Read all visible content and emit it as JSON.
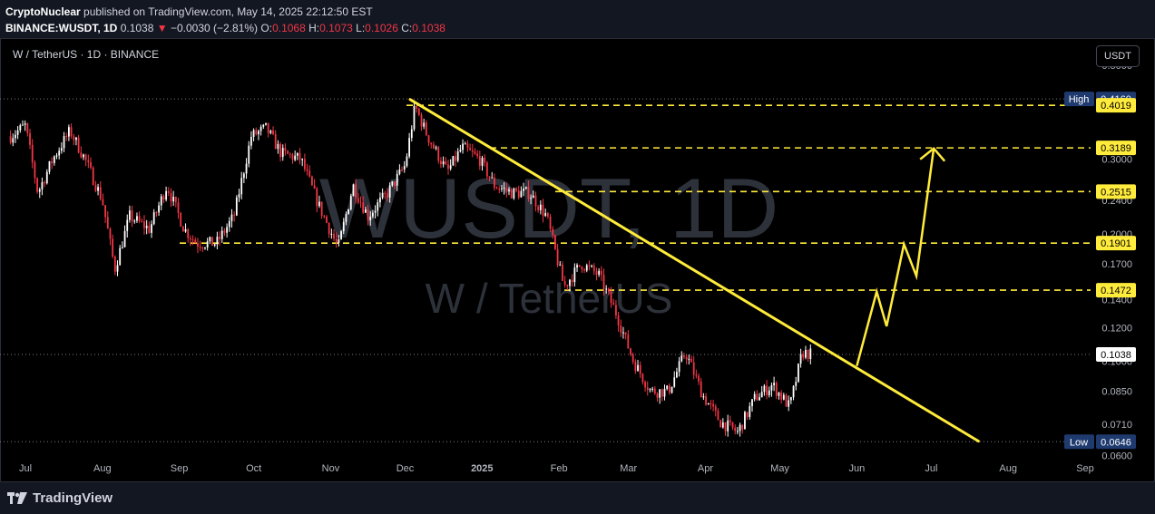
{
  "header": {
    "publisher": "CryptoNuclear",
    "published_text": "published on TradingView.com, May 14, 2025 22:12:50 EST",
    "symbol_line": "BINANCE:WUSDT, 1D",
    "last": "0.1038",
    "change": "−0.0030 (−2.81%)",
    "o_label": "O:",
    "o": "0.1068",
    "h_label": "H:",
    "h": "0.1073",
    "l_label": "L:",
    "l": "0.1026",
    "c_label": "C:",
    "c": "0.1038"
  },
  "chart_title": "W / TetherUS · 1D · BINANCE",
  "currency_button": "USDT",
  "watermark": {
    "line1": "WUSDT, 1D",
    "line2": "W / TetherUS"
  },
  "brand": "TradingView",
  "colors": {
    "up": "#ffffff",
    "down": "#f23645",
    "level": "#ffeb3b",
    "trend": "#ffeb3b",
    "bg": "#000000"
  },
  "chart_data": {
    "type": "candlestick",
    "y_scale": "log",
    "ylim": [
      0.0592,
      0.53
    ],
    "x_ticks": [
      "Jul",
      "Aug",
      "Sep",
      "Oct",
      "Nov",
      "Dec",
      "2025",
      "Feb",
      "Mar",
      "Apr",
      "May",
      "Jun",
      "Jul",
      "Aug",
      "Sep"
    ],
    "y_ticks": [
      "0.5000",
      "0.4000",
      "0.3000",
      "0.2400",
      "0.2000",
      "0.1700",
      "0.1400",
      "0.1200",
      "0.1000",
      "0.0850",
      "0.0710",
      "0.0600"
    ],
    "high_label": "High",
    "high": "0.4160",
    "low_label": "Low",
    "low": "0.0646",
    "last_price": "0.1038",
    "levels": [
      "0.4019",
      "0.3189",
      "0.2515",
      "0.1901",
      "0.1472"
    ],
    "price_path": [
      [
        "2024-06-25",
        0.34
      ],
      [
        "2024-07-01",
        0.36
      ],
      [
        "2024-07-06",
        0.25
      ],
      [
        "2024-07-12",
        0.3
      ],
      [
        "2024-07-19",
        0.35
      ],
      [
        "2024-07-25",
        0.3
      ],
      [
        "2024-08-01",
        0.24
      ],
      [
        "2024-08-06",
        0.165
      ],
      [
        "2024-08-12",
        0.22
      ],
      [
        "2024-08-20",
        0.205
      ],
      [
        "2024-08-27",
        0.26
      ],
      [
        "2024-09-03",
        0.205
      ],
      [
        "2024-09-08",
        0.19
      ],
      [
        "2024-09-16",
        0.19
      ],
      [
        "2024-09-23",
        0.22
      ],
      [
        "2024-09-30",
        0.34
      ],
      [
        "2024-10-06",
        0.355
      ],
      [
        "2024-10-12",
        0.31
      ],
      [
        "2024-10-20",
        0.3
      ],
      [
        "2024-10-27",
        0.235
      ],
      [
        "2024-11-04",
        0.185
      ],
      [
        "2024-11-10",
        0.26
      ],
      [
        "2024-11-16",
        0.22
      ],
      [
        "2024-11-24",
        0.25
      ],
      [
        "2024-12-01",
        0.29
      ],
      [
        "2024-12-05",
        0.4
      ],
      [
        "2024-12-10",
        0.34
      ],
      [
        "2024-12-18",
        0.28
      ],
      [
        "2024-12-24",
        0.32
      ],
      [
        "2024-12-31",
        0.3
      ],
      [
        "2025-01-06",
        0.26
      ],
      [
        "2025-01-13",
        0.25
      ],
      [
        "2025-01-20",
        0.25
      ],
      [
        "2025-01-27",
        0.22
      ],
      [
        "2025-02-03",
        0.15
      ],
      [
        "2025-02-10",
        0.17
      ],
      [
        "2025-02-17",
        0.16
      ],
      [
        "2025-02-24",
        0.13
      ],
      [
        "2025-03-03",
        0.1
      ],
      [
        "2025-03-10",
        0.085
      ],
      [
        "2025-03-17",
        0.085
      ],
      [
        "2025-03-24",
        0.105
      ],
      [
        "2025-03-31",
        0.083
      ],
      [
        "2025-04-07",
        0.072
      ],
      [
        "2025-04-14",
        0.068
      ],
      [
        "2025-04-21",
        0.082
      ],
      [
        "2025-04-28",
        0.088
      ],
      [
        "2025-05-05",
        0.078
      ],
      [
        "2025-05-10",
        0.105
      ],
      [
        "2025-05-14",
        0.1038
      ]
    ],
    "trendline": [
      [
        "2024-12-03",
        0.415
      ],
      [
        "2025-07-20",
        0.0648
      ]
    ],
    "projection_path": [
      [
        "2025-06-01",
        0.0975
      ],
      [
        "2025-06-09",
        0.146
      ],
      [
        "2025-06-13",
        0.121
      ],
      [
        "2025-06-20",
        0.189
      ],
      [
        "2025-06-25",
        0.159
      ],
      [
        "2025-07-02",
        0.318
      ]
    ]
  }
}
